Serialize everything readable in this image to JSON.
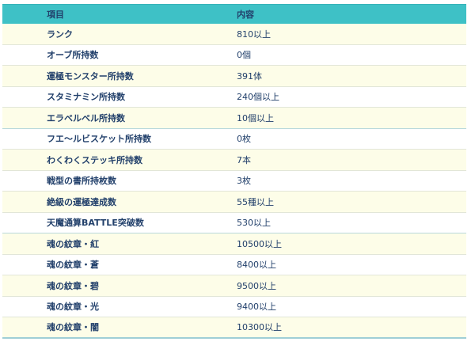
{
  "header": {
    "item_label": "項目",
    "content_label": "内容"
  },
  "rows": [
    {
      "item": "ランク",
      "value": "810以上"
    },
    {
      "item": "オーブ所持数",
      "value": "0個"
    },
    {
      "item": "運極モンスター所持数",
      "value": "391体"
    },
    {
      "item": "スタミナミン所持数",
      "value": "240個以上"
    },
    {
      "item": "エラベルベル所持数",
      "value": "10個以上"
    },
    {
      "item": "フエ〜ルビスケット所持数",
      "value": "0枚"
    },
    {
      "item": "わくわくステッキ所持数",
      "value": "7本"
    },
    {
      "item": "戦型の書所持枚数",
      "value": "3枚"
    },
    {
      "item": "絶級の運極達成数",
      "value": "55種以上"
    },
    {
      "item": "天魔通算BATTLE突破数",
      "value": "530以上"
    },
    {
      "item": "魂の紋章・紅",
      "value": "10500以上"
    },
    {
      "item": "魂の紋章・蒼",
      "value": "8400以上"
    },
    {
      "item": "魂の紋章・碧",
      "value": "9500以上"
    },
    {
      "item": "魂の紋章・光",
      "value": "9400以上"
    },
    {
      "item": "魂の紋章・闇",
      "value": "10300以上"
    }
  ]
}
